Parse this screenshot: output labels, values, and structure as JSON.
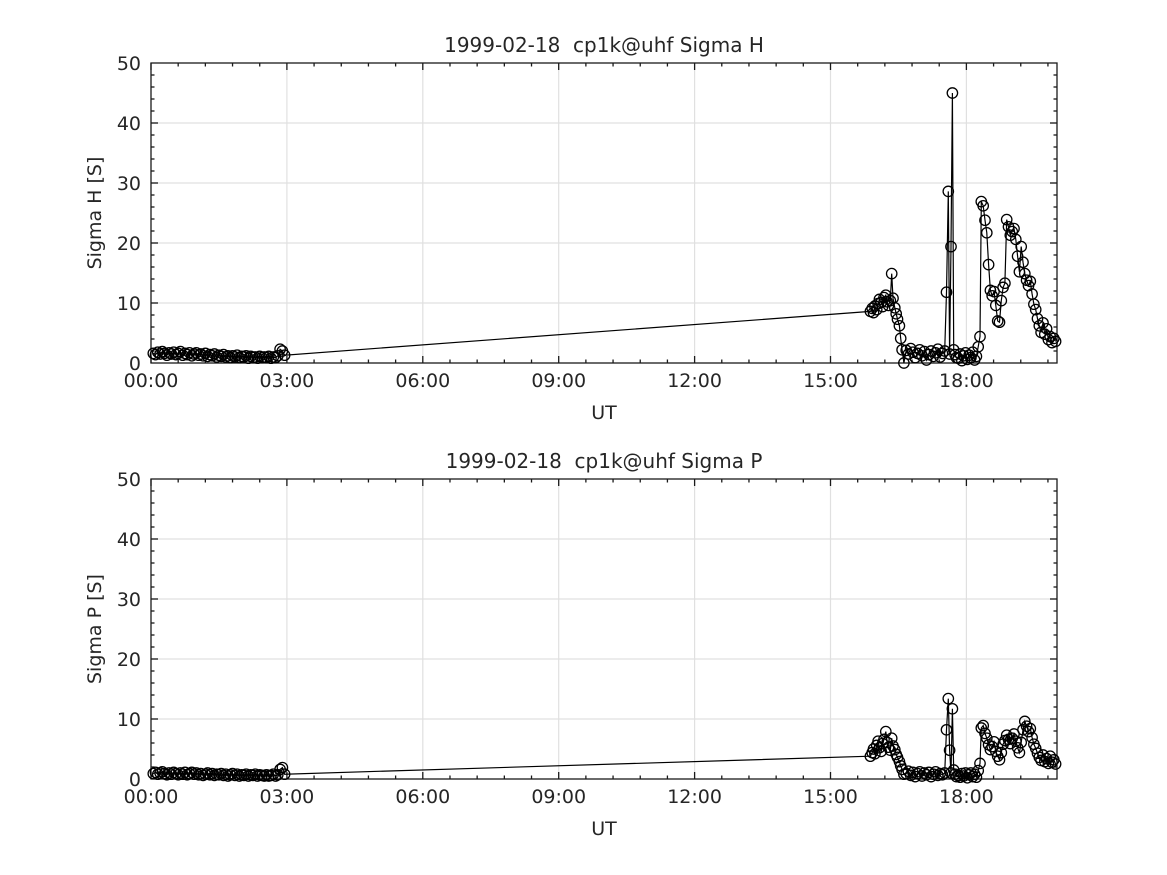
{
  "figure": {
    "background": "#ffffff",
    "text_color": "#262626",
    "grid_color": "#e0e0e0",
    "axis_color": "#1a1a1a",
    "line_color": "#000000",
    "marker_style": "open-circle"
  },
  "chart_data": [
    {
      "type": "line",
      "title": "1999-02-18  cp1k@uhf Sigma H",
      "xlabel": "UT",
      "ylabel": "Sigma H [S]",
      "xlim_hours": [
        0,
        20
      ],
      "ylim": [
        0,
        50
      ],
      "xticks": [
        "00:00",
        "03:00",
        "06:00",
        "09:00",
        "12:00",
        "15:00",
        "18:00"
      ],
      "xtick_hours": [
        0,
        3,
        6,
        9,
        12,
        15,
        18
      ],
      "yticks": [
        0,
        10,
        20,
        30,
        40,
        50
      ],
      "x_minor_step_hours": 0.6,
      "y_minor_step": 2,
      "grid": true,
      "legend": "none",
      "x_hours": [
        0.05,
        0.1,
        0.15,
        0.2,
        0.25,
        0.3,
        0.35,
        0.4,
        0.45,
        0.5,
        0.55,
        0.6,
        0.65,
        0.7,
        0.75,
        0.8,
        0.85,
        0.9,
        0.95,
        1.0,
        1.05,
        1.1,
        1.15,
        1.2,
        1.25,
        1.3,
        1.35,
        1.4,
        1.45,
        1.5,
        1.55,
        1.6,
        1.65,
        1.7,
        1.75,
        1.8,
        1.85,
        1.9,
        1.95,
        2.0,
        2.05,
        2.1,
        2.15,
        2.2,
        2.25,
        2.3,
        2.35,
        2.4,
        2.45,
        2.5,
        2.55,
        2.6,
        2.65,
        2.7,
        2.75,
        2.8,
        2.85,
        2.9,
        2.95,
        15.88,
        15.92,
        15.95,
        15.98,
        16.02,
        16.05,
        16.08,
        16.12,
        16.15,
        16.18,
        16.22,
        16.25,
        16.28,
        16.32,
        16.35,
        16.38,
        16.42,
        16.45,
        16.48,
        16.52,
        16.55,
        16.58,
        16.62,
        16.67,
        16.72,
        16.77,
        16.82,
        16.87,
        16.92,
        16.97,
        17.02,
        17.07,
        17.12,
        17.17,
        17.22,
        17.27,
        17.32,
        17.37,
        17.42,
        17.47,
        17.52,
        17.56,
        17.6,
        17.63,
        17.66,
        17.69,
        17.72,
        17.75,
        17.78,
        17.82,
        17.86,
        17.9,
        17.94,
        17.98,
        18.02,
        18.06,
        18.1,
        18.14,
        18.18,
        18.22,
        18.26,
        18.3,
        18.33,
        18.37,
        18.41,
        18.45,
        18.49,
        18.53,
        18.57,
        18.61,
        18.65,
        18.69,
        18.73,
        18.77,
        18.81,
        18.85,
        18.89,
        18.93,
        18.97,
        19.01,
        19.05,
        19.09,
        19.13,
        19.17,
        19.21,
        19.25,
        19.29,
        19.33,
        19.37,
        19.41,
        19.45,
        19.49,
        19.53,
        19.57,
        19.61,
        19.65,
        19.69,
        19.73,
        19.77,
        19.81,
        19.85,
        19.89,
        19.93,
        19.97
      ],
      "values": [
        1.6,
        1.4,
        1.8,
        1.5,
        1.9,
        1.6,
        1.3,
        1.7,
        1.5,
        1.8,
        1.4,
        1.6,
        1.9,
        1.3,
        1.6,
        1.4,
        1.7,
        1.2,
        1.5,
        1.7,
        1.3,
        1.5,
        1.2,
        1.6,
        1.1,
        1.4,
        1.2,
        1.5,
        1.0,
        1.3,
        1.1,
        1.4,
        1.0,
        1.2,
        0.9,
        1.2,
        1.0,
        1.3,
        0.9,
        1.1,
        1.0,
        1.2,
        0.8,
        1.1,
        0.9,
        1.0,
        0.8,
        1.1,
        0.9,
        1.0,
        0.9,
        1.1,
        0.8,
        1.0,
        0.9,
        1.2,
        2.3,
        2.0,
        1.3,
        8.6,
        9.1,
        8.4,
        9.5,
        8.9,
        9.9,
        10.6,
        10.1,
        9.4,
        10.9,
        11.3,
        10.2,
        9.6,
        10.4,
        14.9,
        10.8,
        9.2,
        8.2,
        7.3,
        6.2,
        4.1,
        2.2,
        0.0,
        2.1,
        1.5,
        2.4,
        1.8,
        0.9,
        1.6,
        2.2,
        1.2,
        1.9,
        0.5,
        1.4,
        2.0,
        1.1,
        1.7,
        2.3,
        1.0,
        1.6,
        2.0,
        11.8,
        28.6,
        1.5,
        19.4,
        45.0,
        2.2,
        1.4,
        0.9,
        0.8,
        1.5,
        0.4,
        1.2,
        1.7,
        0.6,
        1.3,
        0.9,
        1.8,
        0.5,
        1.1,
        2.7,
        4.4,
        26.9,
        26.2,
        23.8,
        21.7,
        16.4,
        12.1,
        11.2,
        11.9,
        9.6,
        7.0,
        6.8,
        10.4,
        12.6,
        13.3,
        23.9,
        22.7,
        21.3,
        21.9,
        22.4,
        20.6,
        17.8,
        15.2,
        19.4,
        16.8,
        14.9,
        13.8,
        12.9,
        13.6,
        11.5,
        9.8,
        8.9,
        7.4,
        6.2,
        5.1,
        6.7,
        4.8,
        5.7,
        3.9,
        4.4,
        3.4,
        4.1,
        3.6
      ]
    },
    {
      "type": "line",
      "title": "1999-02-18  cp1k@uhf Sigma P",
      "xlabel": "UT",
      "ylabel": "Sigma P [S]",
      "xlim_hours": [
        0,
        20
      ],
      "ylim": [
        0,
        50
      ],
      "xticks": [
        "00:00",
        "03:00",
        "06:00",
        "09:00",
        "12:00",
        "15:00",
        "18:00"
      ],
      "xtick_hours": [
        0,
        3,
        6,
        9,
        12,
        15,
        18
      ],
      "yticks": [
        0,
        10,
        20,
        30,
        40,
        50
      ],
      "x_minor_step_hours": 0.6,
      "y_minor_step": 2,
      "grid": true,
      "legend": "none",
      "x_hours": [
        0.05,
        0.1,
        0.15,
        0.2,
        0.25,
        0.3,
        0.35,
        0.4,
        0.45,
        0.5,
        0.55,
        0.6,
        0.65,
        0.7,
        0.75,
        0.8,
        0.85,
        0.9,
        0.95,
        1.0,
        1.05,
        1.1,
        1.15,
        1.2,
        1.25,
        1.3,
        1.35,
        1.4,
        1.45,
        1.5,
        1.55,
        1.6,
        1.65,
        1.7,
        1.75,
        1.8,
        1.85,
        1.9,
        1.95,
        2.0,
        2.05,
        2.1,
        2.15,
        2.2,
        2.25,
        2.3,
        2.35,
        2.4,
        2.45,
        2.5,
        2.55,
        2.6,
        2.65,
        2.7,
        2.75,
        2.8,
        2.85,
        2.9,
        2.95,
        15.88,
        15.92,
        15.95,
        15.98,
        16.02,
        16.05,
        16.08,
        16.12,
        16.15,
        16.18,
        16.22,
        16.25,
        16.28,
        16.32,
        16.35,
        16.38,
        16.42,
        16.45,
        16.48,
        16.52,
        16.55,
        16.58,
        16.62,
        16.67,
        16.72,
        16.77,
        16.82,
        16.87,
        16.92,
        16.97,
        17.02,
        17.07,
        17.12,
        17.17,
        17.22,
        17.27,
        17.32,
        17.37,
        17.42,
        17.47,
        17.52,
        17.56,
        17.6,
        17.63,
        17.66,
        17.69,
        17.72,
        17.75,
        17.78,
        17.82,
        17.86,
        17.9,
        17.94,
        17.98,
        18.02,
        18.06,
        18.1,
        18.14,
        18.18,
        18.22,
        18.26,
        18.3,
        18.33,
        18.37,
        18.41,
        18.45,
        18.49,
        18.53,
        18.57,
        18.61,
        18.65,
        18.69,
        18.73,
        18.77,
        18.81,
        18.85,
        18.89,
        18.93,
        18.97,
        19.01,
        19.05,
        19.09,
        19.13,
        19.17,
        19.21,
        19.25,
        19.29,
        19.33,
        19.37,
        19.41,
        19.45,
        19.49,
        19.53,
        19.57,
        19.61,
        19.65,
        19.69,
        19.73,
        19.77,
        19.81,
        19.85,
        19.89,
        19.93,
        19.97
      ],
      "values": [
        0.9,
        1.1,
        0.8,
        1.0,
        1.2,
        0.9,
        0.7,
        1.0,
        0.8,
        1.1,
        0.9,
        0.7,
        1.0,
        0.8,
        1.1,
        0.7,
        0.9,
        1.1,
        0.8,
        1.0,
        0.7,
        0.9,
        0.6,
        0.8,
        1.0,
        0.7,
        0.9,
        0.6,
        0.8,
        0.7,
        0.9,
        0.6,
        0.8,
        0.5,
        0.7,
        0.9,
        0.6,
        0.8,
        0.5,
        0.7,
        0.6,
        0.8,
        0.5,
        0.7,
        0.6,
        0.8,
        0.5,
        0.7,
        0.6,
        0.5,
        0.7,
        0.5,
        0.6,
        0.8,
        0.5,
        0.7,
        1.6,
        1.9,
        0.8,
        3.8,
        4.4,
        5.0,
        4.2,
        5.6,
        6.3,
        5.2,
        4.6,
        5.9,
        6.6,
        7.9,
        6.1,
        5.3,
        4.8,
        6.8,
        5.5,
        4.9,
        4.1,
        3.6,
        2.9,
        2.2,
        1.6,
        0.8,
        0.9,
        1.3,
        0.6,
        1.1,
        0.4,
        0.9,
        1.2,
        0.5,
        1.0,
        0.7,
        1.1,
        0.4,
        0.8,
        1.2,
        0.6,
        0.9,
        0.7,
        1.0,
        8.2,
        13.4,
        4.8,
        1.0,
        11.7,
        1.5,
        0.8,
        0.4,
        0.6,
        0.3,
        0.9,
        0.5,
        1.0,
        0.2,
        0.7,
        1.0,
        0.4,
        0.8,
        0.3,
        1.4,
        2.6,
        8.5,
        8.9,
        7.6,
        6.8,
        5.7,
        4.9,
        5.4,
        6.2,
        4.6,
        3.8,
        3.2,
        4.4,
        5.8,
        6.4,
        7.3,
        6.6,
        5.9,
        6.8,
        7.5,
        6.3,
        5.2,
        4.4,
        6.1,
        8.2,
        9.6,
        8.8,
        7.9,
        8.4,
        6.9,
        5.8,
        5.1,
        4.3,
        3.6,
        3.1,
        4.0,
        2.9,
        3.4,
        2.6,
        3.8,
        2.8,
        3.2,
        2.5
      ]
    }
  ]
}
